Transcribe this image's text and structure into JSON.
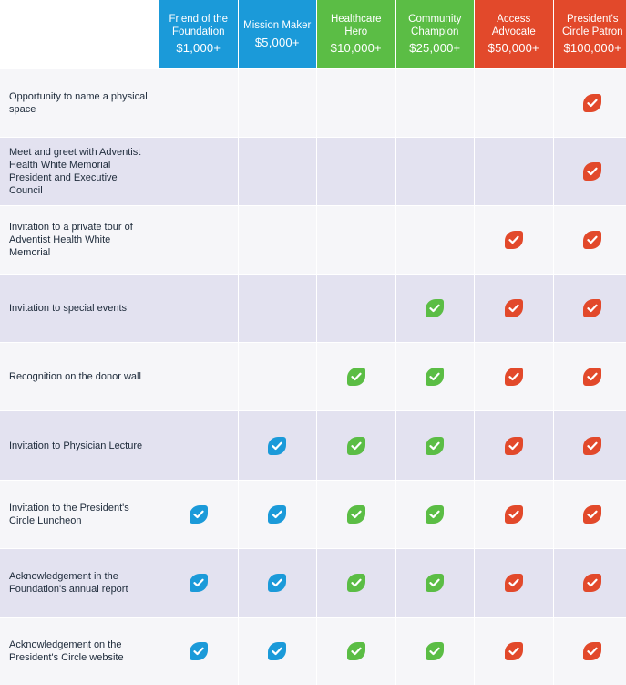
{
  "colors": {
    "blue": "#1b9ad9",
    "green": "#5bbd45",
    "red": "#e2492b",
    "row_light": "#f6f6f9",
    "row_dark": "#e3e2f0"
  },
  "tiers": [
    {
      "name": "Friend of the Foundation",
      "amount": "$1,000+",
      "color": "blue"
    },
    {
      "name": "Mission Maker",
      "amount": "$5,000+",
      "color": "blue"
    },
    {
      "name": "Healthcare Hero",
      "amount": "$10,000+",
      "color": "green"
    },
    {
      "name": "Community Champion",
      "amount": "$25,000+",
      "color": "green"
    },
    {
      "name": "Access Advocate",
      "amount": "$50,000+",
      "color": "red"
    },
    {
      "name": "President's Circle Patron",
      "amount": "$100,000+",
      "color": "red"
    }
  ],
  "check_icon": "check-leaf-icon",
  "benefits": [
    {
      "label": "Opportunity to name a physical space",
      "included": [
        false,
        false,
        false,
        false,
        false,
        true
      ]
    },
    {
      "label": "Meet and greet with Adventist Health White Memorial President and Executive Council",
      "included": [
        false,
        false,
        false,
        false,
        false,
        true
      ]
    },
    {
      "label": "Invitation to a private tour of Adventist Health White Memorial",
      "included": [
        false,
        false,
        false,
        false,
        true,
        true
      ]
    },
    {
      "label": "Invitation to special events",
      "included": [
        false,
        false,
        false,
        true,
        true,
        true
      ]
    },
    {
      "label": "Recognition on the donor wall",
      "included": [
        false,
        false,
        true,
        true,
        true,
        true
      ]
    },
    {
      "label": "Invitation to Physician Lecture",
      "included": [
        false,
        true,
        true,
        true,
        true,
        true
      ]
    },
    {
      "label": "Invitation to the President's Circle Luncheon",
      "included": [
        true,
        true,
        true,
        true,
        true,
        true
      ]
    },
    {
      "label": "Acknowledgement in the Foundation's annual report",
      "included": [
        true,
        true,
        true,
        true,
        true,
        true
      ]
    },
    {
      "label": "Acknowledgement on the President's Circle website",
      "included": [
        true,
        true,
        true,
        true,
        true,
        true
      ]
    }
  ]
}
